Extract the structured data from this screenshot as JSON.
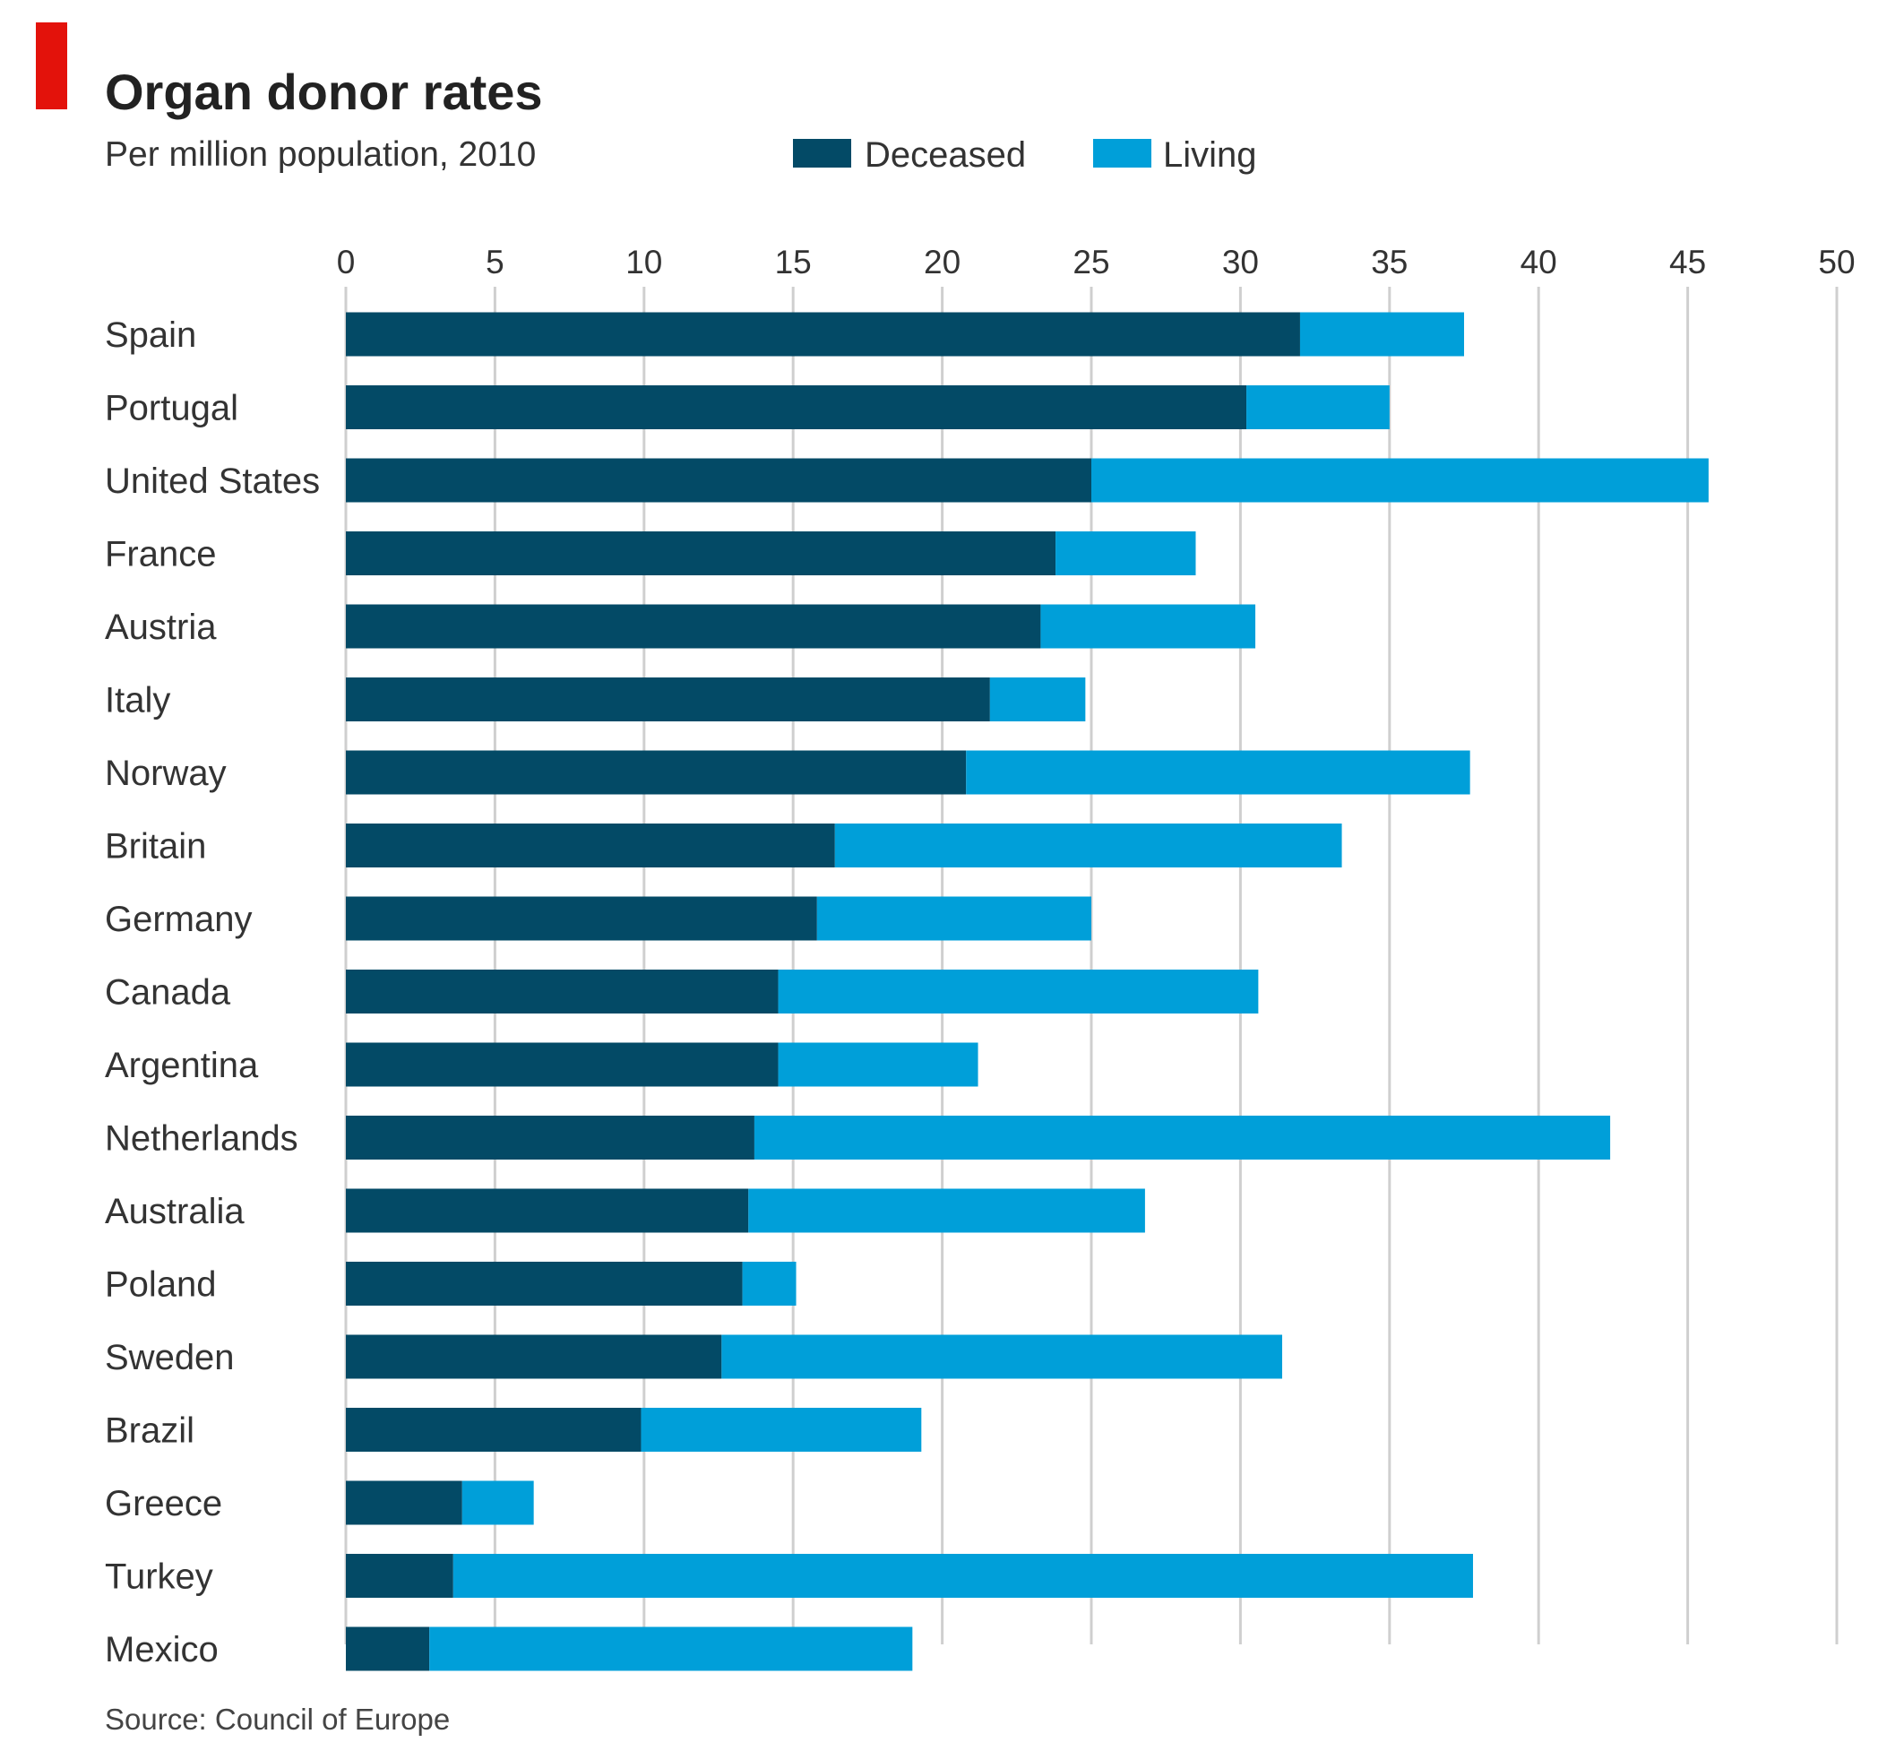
{
  "header": {
    "title": "Organ donor rates",
    "subtitle": "Per million population, 2010",
    "accent_color": "#e3120b"
  },
  "legend": {
    "placement": "top",
    "items": [
      {
        "label": "Deceased",
        "color": "#034a66"
      },
      {
        "label": "Living",
        "color": "#009fd9"
      }
    ]
  },
  "footer": {
    "source": "Source: Council of Europe"
  },
  "chart_data": {
    "type": "bar",
    "orientation": "horizontal",
    "stacked": true,
    "title": "Organ donor rates",
    "subtitle": "Per million population, 2010",
    "xlabel": "",
    "ylabel": "",
    "xlim": [
      0,
      50
    ],
    "xticks": [
      0,
      5,
      10,
      15,
      20,
      25,
      30,
      35,
      40,
      45,
      50
    ],
    "xtick_labels": [
      "0",
      "5",
      "10",
      "15",
      "20",
      "25",
      "30",
      "35",
      "40",
      "45",
      "50"
    ],
    "grid": "vertical",
    "categories": [
      "Spain",
      "Portugal",
      "United States",
      "France",
      "Austria",
      "Italy",
      "Norway",
      "Britain",
      "Germany",
      "Canada",
      "Argentina",
      "Netherlands",
      "Australia",
      "Poland",
      "Sweden",
      "Brazil",
      "Greece",
      "Turkey",
      "Mexico"
    ],
    "series": [
      {
        "name": "Deceased",
        "color": "#034a66",
        "values": [
          32.0,
          30.2,
          25.0,
          23.8,
          23.3,
          21.6,
          20.8,
          16.4,
          15.8,
          14.5,
          14.5,
          13.7,
          13.5,
          13.3,
          12.6,
          9.9,
          3.9,
          3.6,
          2.8
        ]
      },
      {
        "name": "Living",
        "color": "#009fd9",
        "values": [
          5.5,
          4.8,
          20.7,
          4.7,
          7.2,
          3.2,
          16.9,
          17.0,
          9.2,
          16.1,
          6.7,
          28.7,
          13.3,
          1.8,
          18.8,
          9.4,
          2.4,
          34.2,
          16.2
        ]
      }
    ]
  }
}
